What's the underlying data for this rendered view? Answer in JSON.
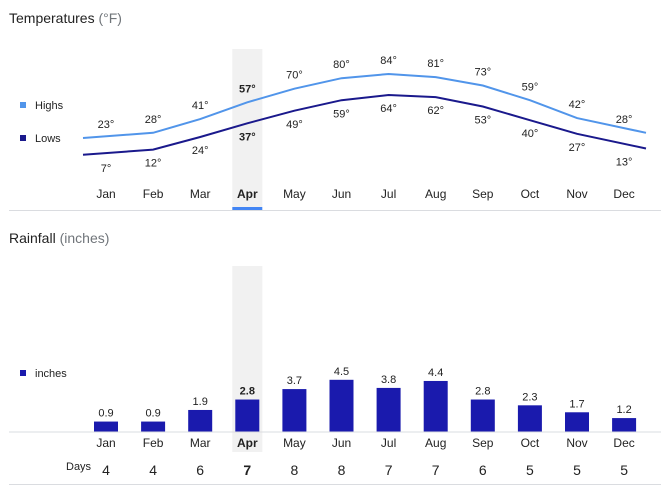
{
  "temperatures": {
    "title": "Temperatures",
    "unit": "(°F)"
  },
  "rainfall": {
    "title": "Rainfall",
    "unit": "(inches)"
  },
  "days_label": "Days",
  "selected_month": "Apr",
  "colors": {
    "highs": "#5195ea",
    "lows": "#1a198c",
    "bars": "#1a1aad",
    "selected_band": "#f1f1f1",
    "selected_underline": "#4285f4"
  },
  "chart_data": [
    {
      "type": "line",
      "title": "Temperatures (°F)",
      "categories": [
        "Jan",
        "Feb",
        "Mar",
        "Apr",
        "May",
        "Jun",
        "Jul",
        "Aug",
        "Sep",
        "Oct",
        "Nov",
        "Dec"
      ],
      "series": [
        {
          "name": "Highs",
          "values": [
            23,
            28,
            41,
            57,
            70,
            80,
            84,
            81,
            73,
            59,
            42,
            28
          ],
          "labels": [
            "23°",
            "28°",
            "41°",
            "57°",
            "70°",
            "80°",
            "84°",
            "81°",
            "73°",
            "59°",
            "42°",
            "28°"
          ]
        },
        {
          "name": "Lows",
          "values": [
            7,
            12,
            24,
            37,
            49,
            59,
            64,
            62,
            53,
            40,
            27,
            13
          ],
          "labels": [
            "7°",
            "12°",
            "24°",
            "37°",
            "49°",
            "59°",
            "64°",
            "62°",
            "53°",
            "40°",
            "27°",
            "13°"
          ]
        }
      ],
      "legend": "left",
      "grid": false
    },
    {
      "type": "bar",
      "title": "Rainfall (inches)",
      "categories": [
        "Jan",
        "Feb",
        "Mar",
        "Apr",
        "May",
        "Jun",
        "Jul",
        "Aug",
        "Sep",
        "Oct",
        "Nov",
        "Dec"
      ],
      "series": [
        {
          "name": "inches",
          "values": [
            0.9,
            0.9,
            1.9,
            2.8,
            3.7,
            4.5,
            3.8,
            4.4,
            2.8,
            2.3,
            1.7,
            1.2
          ],
          "labels": [
            "0.9",
            "0.9",
            "1.9",
            "2.8",
            "3.7",
            "4.5",
            "3.8",
            "4.4",
            "2.8",
            "2.3",
            "1.7",
            "1.2"
          ]
        }
      ],
      "days": [
        4,
        4,
        6,
        7,
        8,
        8,
        7,
        7,
        6,
        5,
        5,
        5
      ],
      "legend": "left",
      "grid": false
    }
  ]
}
